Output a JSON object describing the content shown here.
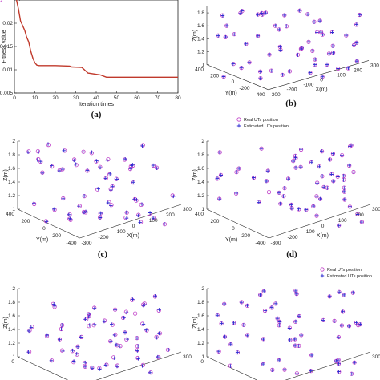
{
  "chart_data": [
    {
      "panel": "(a)",
      "type": "line",
      "xlabel": "Iteration times",
      "ylabel": "Fitness value",
      "xlim": [
        0,
        80
      ],
      "ylim": [
        0.005,
        0.025
      ],
      "x_ticks": [
        "0",
        "10",
        "20",
        "30",
        "40",
        "50",
        "60",
        "70",
        "80"
      ],
      "y_ticks": [
        "0.005",
        "0.01",
        "0.015",
        "0.02"
      ],
      "series": [
        {
          "color": "#c0392b",
          "x": [
            1,
            2,
            3,
            4,
            5,
            6,
            7,
            8,
            9,
            10,
            11,
            12,
            20,
            27,
            28,
            33,
            36,
            42,
            45,
            80
          ],
          "y": [
            0.025,
            0.023,
            0.0205,
            0.0195,
            0.0185,
            0.017,
            0.016,
            0.014,
            0.0125,
            0.0115,
            0.011,
            0.0109,
            0.0109,
            0.0108,
            0.0106,
            0.0105,
            0.0093,
            0.0089,
            0.0084,
            0.0084
          ]
        }
      ]
    },
    {
      "panel": "(b)",
      "type": "scatter",
      "zlabel": "Z(m)",
      "xlabel": "X(m)",
      "ylabel": "Y(m)",
      "z_ticks": [
        "1",
        "1.2",
        "1.4",
        "1.6",
        "1.8"
      ],
      "x_ticks": [
        "-300",
        "-200",
        "-100",
        "0",
        "100",
        "200",
        "300"
      ],
      "y_ticks": [
        "-400",
        "-200",
        "0",
        "200",
        "400"
      ],
      "legend": [
        "Real UTs position",
        "Estimated UTs position"
      ]
    },
    {
      "panel": "(c)",
      "type": "scatter",
      "zlabel": "Z(m)",
      "xlabel": "X(m)",
      "ylabel": "Y(m)",
      "z_ticks": [
        "1",
        "1.2",
        "1.4",
        "1.6",
        "1.8",
        "2"
      ],
      "x_ticks": [
        "-300",
        "-200",
        "-100",
        "0",
        "100",
        "200",
        "300"
      ],
      "y_ticks": [
        "-400",
        "-200",
        "0",
        "200",
        "400"
      ]
    },
    {
      "panel": "(d)",
      "type": "scatter",
      "zlabel": "Z(m)",
      "xlabel": "X(m)",
      "ylabel": "Y(m)",
      "z_ticks": [
        "1",
        "1.2",
        "1.4",
        "1.6",
        "1.8",
        "2"
      ],
      "x_ticks": [
        "-300",
        "-200",
        "-100",
        "0",
        "100",
        "200",
        "300"
      ],
      "y_ticks": [
        "-400",
        "-200",
        "0",
        "200",
        "400"
      ],
      "legend": [
        "Real UTs position",
        "Estimated UTs position"
      ]
    },
    {
      "panel": "(e)",
      "type": "scatter",
      "zlabel": "Z(m)",
      "z_ticks": [
        "1",
        "1.2",
        "1.4",
        "1.6",
        "1.8",
        "2"
      ],
      "y_ticks": [
        "200",
        "0"
      ],
      "x_ticks": [
        "300"
      ]
    },
    {
      "panel": "(f)",
      "type": "scatter",
      "zlabel": "Z(m)",
      "z_ticks": [
        "1",
        "1.2",
        "1.4",
        "1.6",
        "1.8",
        "2"
      ],
      "y_ticks": [
        "200",
        "0"
      ],
      "x_ticks": [
        "300"
      ],
      "legend": [
        "Real UTs position",
        "Estimated UTs position"
      ]
    }
  ],
  "colors": {
    "real": "#c040c8",
    "estimated": "#2b2bd0",
    "curve": "#c0392b"
  }
}
